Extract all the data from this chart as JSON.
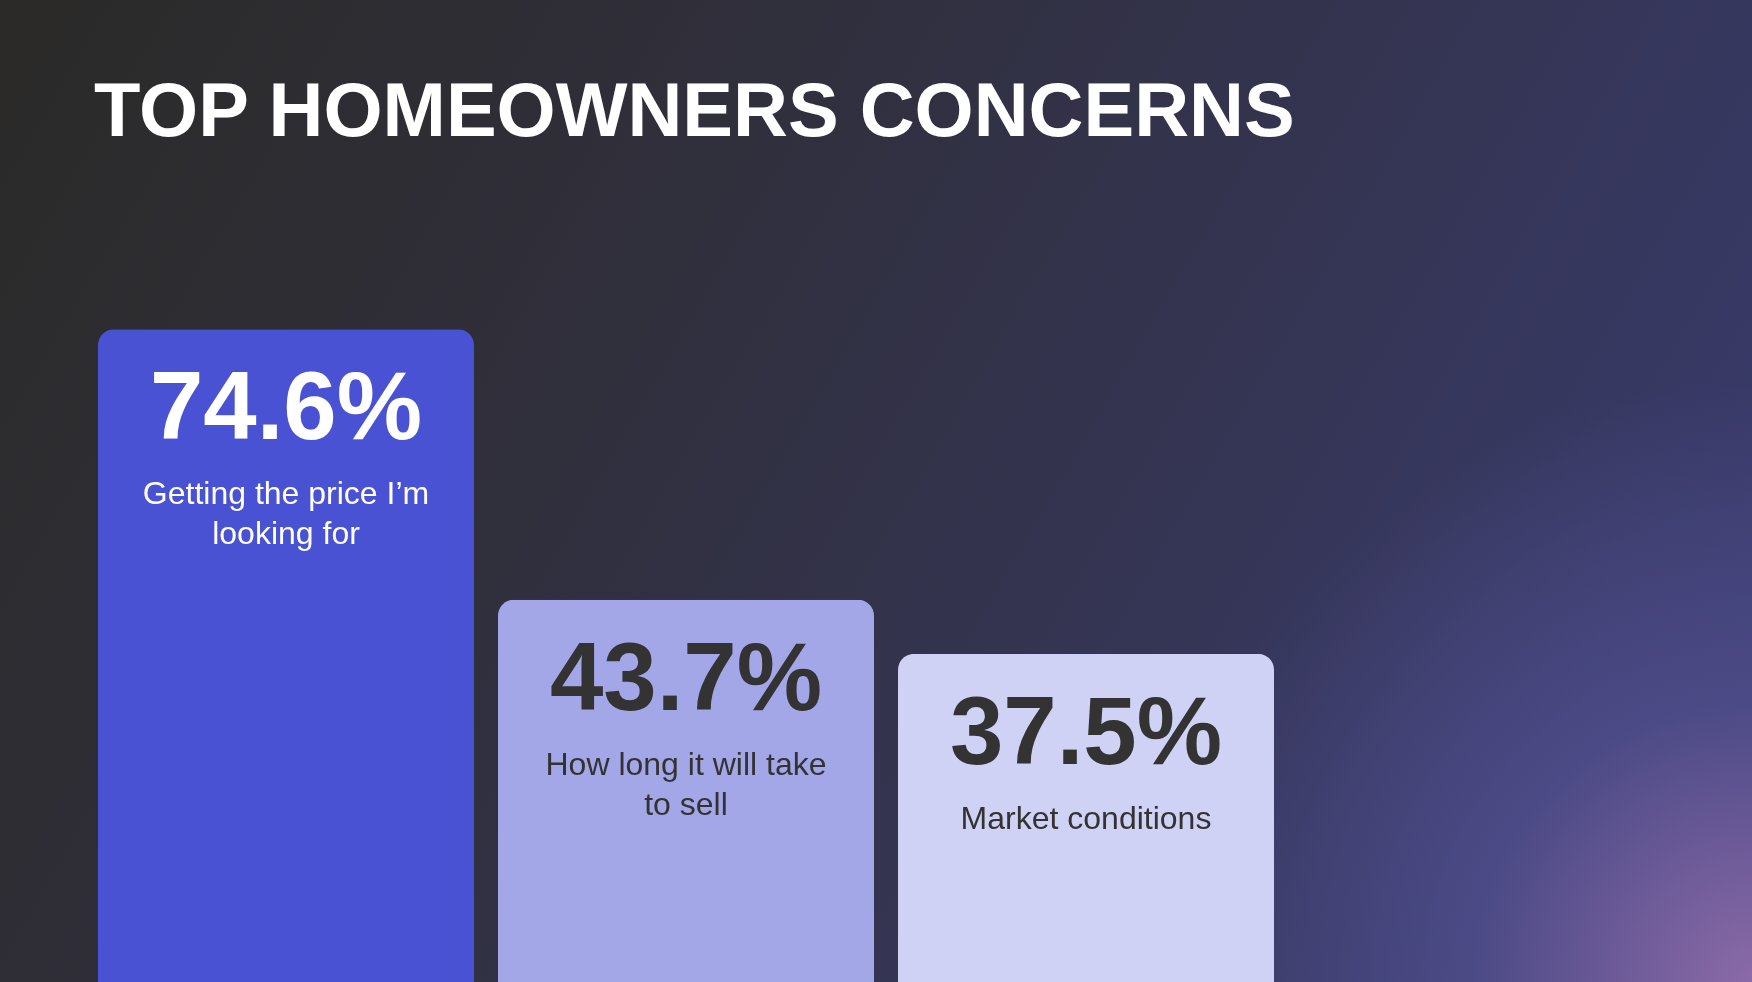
{
  "chart_data": {
    "type": "bar",
    "title": "TOP HOMEOWNERS CONCERNS",
    "categories": [
      "Getting the price I’m looking for",
      "How long it will take to sell",
      "Market conditions"
    ],
    "values": [
      74.6,
      43.7,
      37.5
    ],
    "value_labels": [
      "74.6%",
      "43.7%",
      "37.5%"
    ],
    "colors": [
      "#4a52d4",
      "#a3a7e8",
      "#d0d2f5"
    ]
  }
}
